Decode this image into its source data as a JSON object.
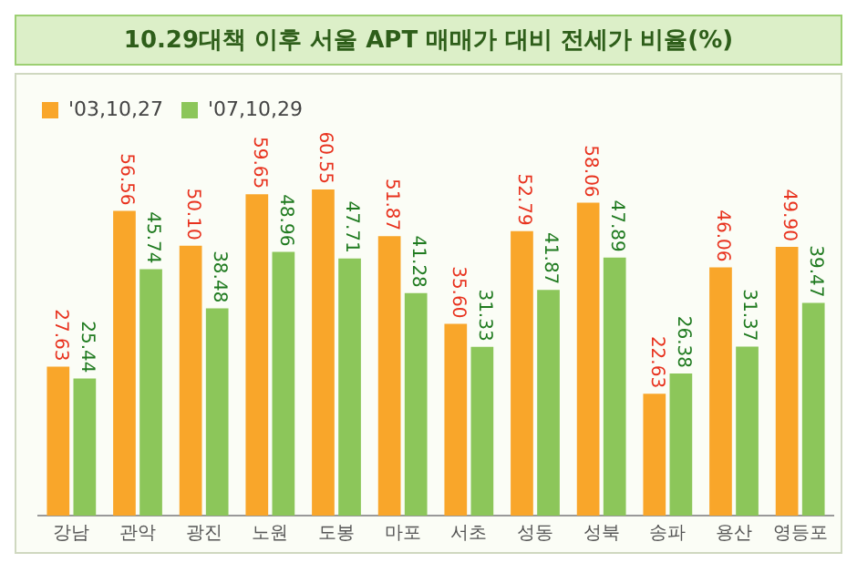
{
  "chart_data": {
    "type": "bar",
    "title": "10.29대책 이후 서울 APT 매매가 대비 전세가 비율(%)",
    "categories": [
      "강남",
      "관악",
      "광진",
      "노원",
      "도봉",
      "마포",
      "서초",
      "성동",
      "성북",
      "송파",
      "용산",
      "영등포"
    ],
    "series": [
      {
        "name": "'03,10,27",
        "color": "#f9a62a",
        "values": [
          27.63,
          56.56,
          50.1,
          59.65,
          60.55,
          51.87,
          35.6,
          52.79,
          58.06,
          22.63,
          46.06,
          49.9
        ],
        "value_labels": [
          "27.63",
          "56.56",
          "50.10",
          "59.65",
          "60.55",
          "51.87",
          "35.60",
          "52.79",
          "58.06",
          "22.63",
          "46.06",
          "49.90"
        ]
      },
      {
        "name": "'07,10,29",
        "color": "#8cc65a",
        "values": [
          25.44,
          45.74,
          38.48,
          48.96,
          47.71,
          41.28,
          31.33,
          41.87,
          47.89,
          26.38,
          31.37,
          39.47
        ],
        "value_labels": [
          "25.44",
          "45.74",
          "38.48",
          "48.96",
          "47.71",
          "41.28",
          "31.33",
          "41.87",
          "47.89",
          "26.38",
          "31.37",
          "39.47"
        ]
      }
    ],
    "legend": "top left",
    "grid": false
  }
}
